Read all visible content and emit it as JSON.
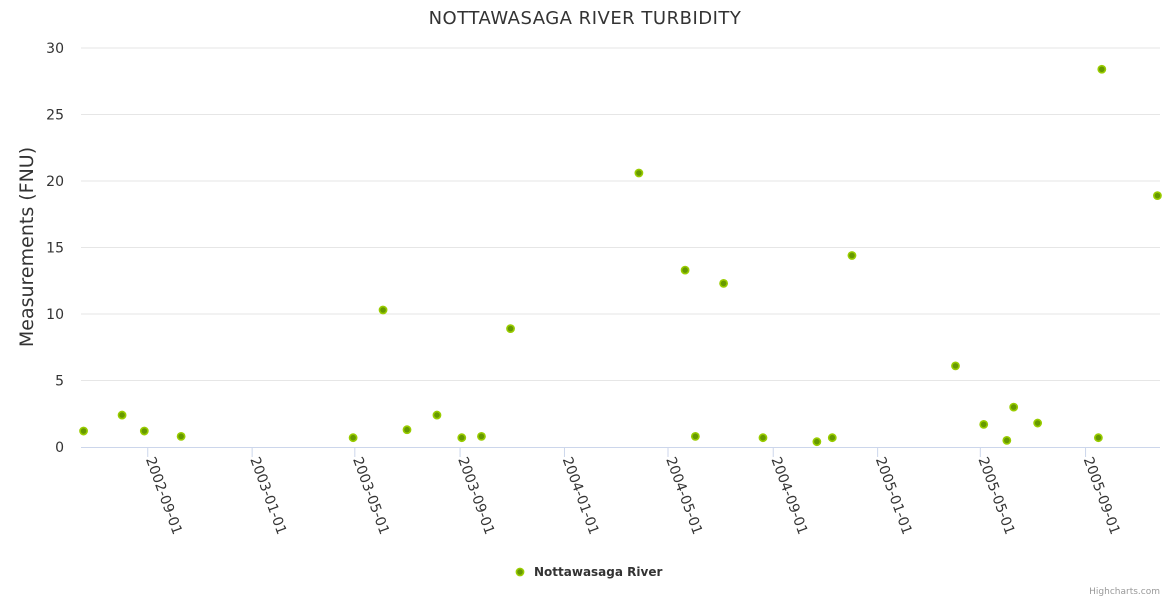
{
  "chart_data": {
    "type": "scatter",
    "title": "NOTTAWASAGA RIVER TURBIDITY",
    "xlabel": "",
    "ylabel": "Measurements (FNU)",
    "ylim": [
      0,
      30
    ],
    "yticks": [
      "0",
      "5",
      "10",
      "15",
      "20",
      "25",
      "30"
    ],
    "xlim": [
      "2002-06-15",
      "2005-11-27"
    ],
    "xticks": [
      "2002-09-01",
      "2003-01-01",
      "2003-05-01",
      "2003-09-01",
      "2004-01-01",
      "2004-05-01",
      "2004-09-01",
      "2005-01-01",
      "2005-05-01",
      "2005-09-01"
    ],
    "legend_position": "bottom-center",
    "series": [
      {
        "name": "Nottawasaga River",
        "color": "#669900",
        "points": [
          {
            "x": "2002-06-18",
            "y": 1.2
          },
          {
            "x": "2002-08-02",
            "y": 2.4
          },
          {
            "x": "2002-08-28",
            "y": 1.2
          },
          {
            "x": "2002-10-10",
            "y": 0.8
          },
          {
            "x": "2003-04-29",
            "y": 0.7
          },
          {
            "x": "2003-06-03",
            "y": 10.3
          },
          {
            "x": "2003-07-01",
            "y": 1.3
          },
          {
            "x": "2003-08-05",
            "y": 2.4
          },
          {
            "x": "2003-09-03",
            "y": 0.7
          },
          {
            "x": "2003-09-26",
            "y": 0.8
          },
          {
            "x": "2003-10-30",
            "y": 8.9
          },
          {
            "x": "2004-03-28",
            "y": 20.6
          },
          {
            "x": "2004-05-21",
            "y": 13.3
          },
          {
            "x": "2004-06-02",
            "y": 0.8
          },
          {
            "x": "2004-07-05",
            "y": 12.3
          },
          {
            "x": "2004-08-20",
            "y": 0.7
          },
          {
            "x": "2004-10-22",
            "y": 0.4
          },
          {
            "x": "2004-11-09",
            "y": 0.7
          },
          {
            "x": "2004-12-02",
            "y": 14.4
          },
          {
            "x": "2005-04-02",
            "y": 6.1
          },
          {
            "x": "2005-05-05",
            "y": 1.7
          },
          {
            "x": "2005-06-01",
            "y": 0.5
          },
          {
            "x": "2005-06-09",
            "y": 3.0
          },
          {
            "x": "2005-07-07",
            "y": 1.8
          },
          {
            "x": "2005-09-16",
            "y": 0.7
          },
          {
            "x": "2005-09-20",
            "y": 28.4
          },
          {
            "x": "2005-11-24",
            "y": 18.9
          }
        ]
      }
    ]
  },
  "credits": "Highcharts.com"
}
